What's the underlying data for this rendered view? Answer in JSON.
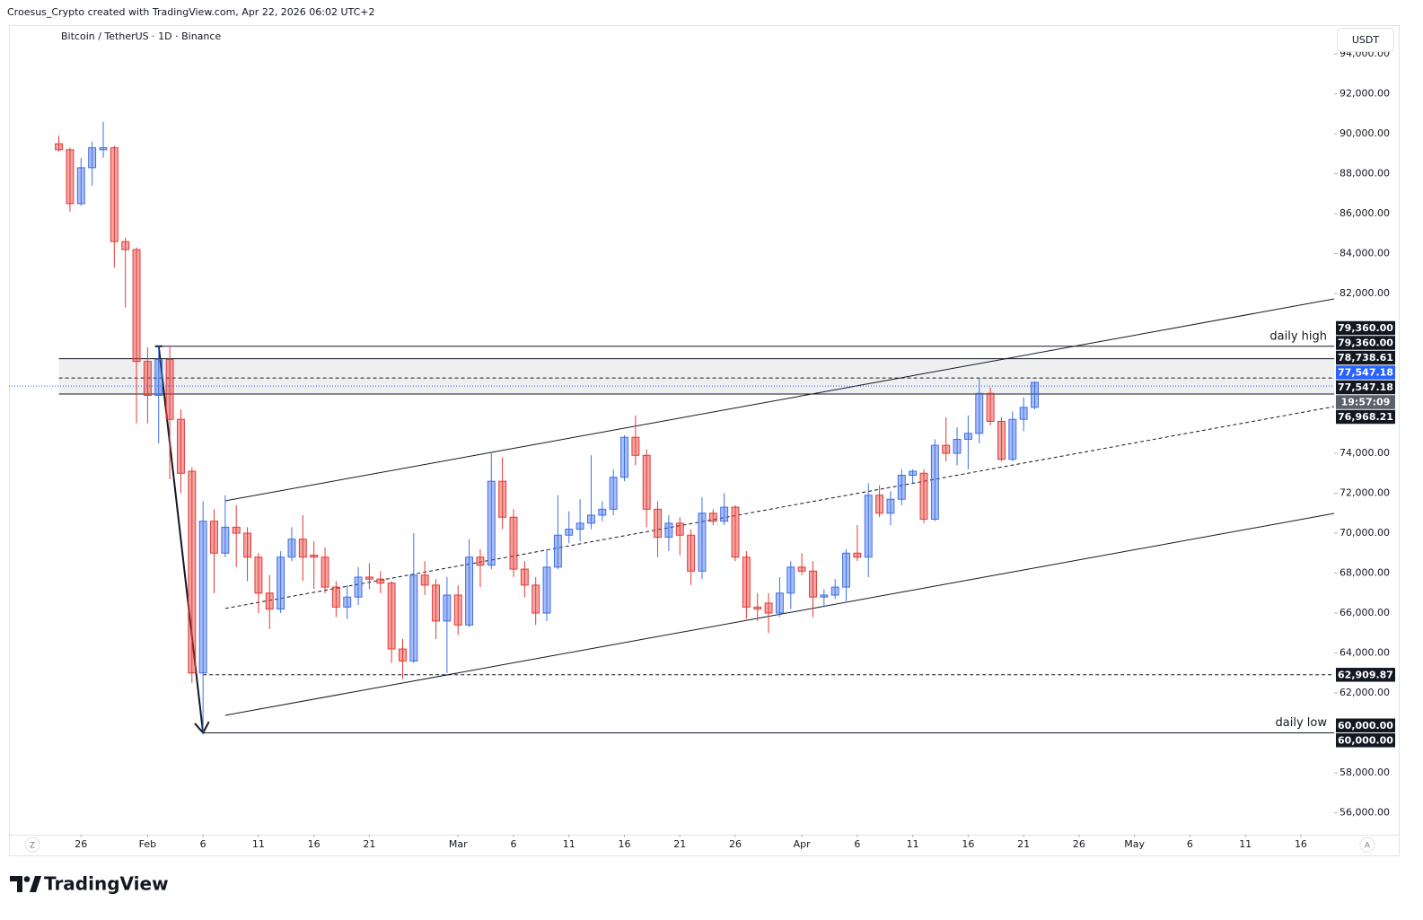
{
  "header": {
    "credit": "Croesus_Crypto created with TradingView.com, Apr 22, 2026 06:02 UTC+2",
    "currency": "USDT"
  },
  "controls": {
    "left": "Z",
    "right": "A"
  },
  "footer": {
    "logo": "TradingView"
  },
  "chart_data": {
    "type": "candlestick",
    "title": "Bitcoin / TetherUS · 1D · Binance",
    "colors": {
      "up": "#3f6ee8",
      "down": "#e53935",
      "current": "#2962ff"
    },
    "grid": false,
    "xlim": [
      "2026-01-19T12:00",
      "2026-05-19T00:00"
    ],
    "ylim": [
      54900,
      95350
    ],
    "xticks": [
      {
        "value": "2026-01-26",
        "label": "26"
      },
      {
        "value": "2026-02-01",
        "label": "Feb"
      },
      {
        "value": "2026-02-06",
        "label": "6"
      },
      {
        "value": "2026-02-11",
        "label": "11"
      },
      {
        "value": "2026-02-16",
        "label": "16"
      },
      {
        "value": "2026-02-21",
        "label": "21"
      },
      {
        "value": "2026-03-01",
        "label": "Mar"
      },
      {
        "value": "2026-03-06",
        "label": "6"
      },
      {
        "value": "2026-03-11",
        "label": "11"
      },
      {
        "value": "2026-03-16",
        "label": "16"
      },
      {
        "value": "2026-03-21",
        "label": "21"
      },
      {
        "value": "2026-03-26",
        "label": "26"
      },
      {
        "value": "2026-04-01",
        "label": "Apr"
      },
      {
        "value": "2026-04-06",
        "label": "6"
      },
      {
        "value": "2026-04-11",
        "label": "11"
      },
      {
        "value": "2026-04-16",
        "label": "16"
      },
      {
        "value": "2026-04-21",
        "label": "21"
      },
      {
        "value": "2026-04-26",
        "label": "26"
      },
      {
        "value": "2026-05-01",
        "label": "May"
      },
      {
        "value": "2026-05-06",
        "label": "6"
      },
      {
        "value": "2026-05-11",
        "label": "11"
      },
      {
        "value": "2026-05-16",
        "label": "16"
      }
    ],
    "yticks": [
      {
        "value": 94000,
        "label": "94,000.00"
      },
      {
        "value": 92000,
        "label": "92,000.00"
      },
      {
        "value": 90000,
        "label": "90,000.00"
      },
      {
        "value": 88000,
        "label": "88,000.00"
      },
      {
        "value": 86000,
        "label": "86,000.00"
      },
      {
        "value": 84000,
        "label": "84,000.00"
      },
      {
        "value": 82000,
        "label": "82,000.00"
      },
      {
        "value": 74000,
        "label": "74,000.00"
      },
      {
        "value": 72000,
        "label": "72,000.00"
      },
      {
        "value": 70000,
        "label": "70,000.00"
      },
      {
        "value": 68000,
        "label": "68,000.00"
      },
      {
        "value": 66000,
        "label": "66,000.00"
      },
      {
        "value": 64000,
        "label": "64,000.00"
      },
      {
        "value": 62000,
        "label": "62,000.00"
      },
      {
        "value": 58000,
        "label": "58,000.00"
      },
      {
        "value": 56000,
        "label": "56,000.00"
      }
    ],
    "x": [
      "2026-01-24",
      "2026-01-25",
      "2026-01-26",
      "2026-01-27",
      "2026-01-28",
      "2026-01-29",
      "2026-01-30",
      "2026-01-31",
      "2026-02-01",
      "2026-02-02",
      "2026-02-03",
      "2026-02-04",
      "2026-02-05",
      "2026-02-06",
      "2026-02-07",
      "2026-02-08",
      "2026-02-09",
      "2026-02-10",
      "2026-02-11",
      "2026-02-12",
      "2026-02-13",
      "2026-02-14",
      "2026-02-15",
      "2026-02-16",
      "2026-02-17",
      "2026-02-18",
      "2026-02-19",
      "2026-02-20",
      "2026-02-21",
      "2026-02-22",
      "2026-02-23",
      "2026-02-24",
      "2026-02-25",
      "2026-02-26",
      "2026-02-27",
      "2026-02-28",
      "2026-03-01",
      "2026-03-02",
      "2026-03-03",
      "2026-03-04",
      "2026-03-05",
      "2026-03-06",
      "2026-03-07",
      "2026-03-08",
      "2026-03-09",
      "2026-03-10",
      "2026-03-11",
      "2026-03-12",
      "2026-03-13",
      "2026-03-14",
      "2026-03-15",
      "2026-03-16",
      "2026-03-17",
      "2026-03-18",
      "2026-03-19",
      "2026-03-20",
      "2026-03-21",
      "2026-03-22",
      "2026-03-23",
      "2026-03-24",
      "2026-03-25",
      "2026-03-26",
      "2026-03-27",
      "2026-03-28",
      "2026-03-29",
      "2026-03-30",
      "2026-03-31",
      "2026-04-01",
      "2026-04-02",
      "2026-04-03",
      "2026-04-04",
      "2026-04-05",
      "2026-04-06",
      "2026-04-07",
      "2026-04-08",
      "2026-04-09",
      "2026-04-10",
      "2026-04-11",
      "2026-04-12",
      "2026-04-13",
      "2026-04-14",
      "2026-04-15",
      "2026-04-16",
      "2026-04-17",
      "2026-04-18",
      "2026-04-19",
      "2026-04-20",
      "2026-04-21",
      "2026-04-22"
    ],
    "open": [
      89500,
      89200,
      86500,
      88300,
      89200,
      89300,
      84600,
      84200,
      78600,
      76900,
      78700,
      75700,
      73100,
      63000,
      70600,
      69000,
      70300,
      70000,
      68800,
      67000,
      66200,
      68800,
      69700,
      68900,
      68800,
      67300,
      66300,
      66800,
      67800,
      67700,
      67500,
      64200,
      63600,
      67900,
      67400,
      65600,
      66900,
      65400,
      68800,
      68400,
      72600,
      70800,
      68200,
      67400,
      66000,
      68300,
      69900,
      70200,
      70500,
      70900,
      71200,
      72800,
      74800,
      73900,
      71200,
      69800,
      70500,
      69900,
      68100,
      71000,
      70600,
      71300,
      68800,
      66300,
      66500,
      66000,
      67000,
      68300,
      68100,
      66800,
      66900,
      67300,
      69000,
      68800,
      71900,
      71000,
      71700,
      72900,
      73000,
      70700,
      74400,
      74000,
      74700,
      75000,
      77000,
      75600,
      73700,
      75700,
      76300
    ],
    "high": [
      89900,
      89300,
      88800,
      89600,
      90600,
      89400,
      84800,
      84300,
      79300,
      79400,
      79400,
      76200,
      73300,
      71600,
      71200,
      71900,
      71400,
      70300,
      69000,
      67900,
      69100,
      70300,
      70900,
      69600,
      69300,
      67600,
      67400,
      68300,
      68500,
      68100,
      67600,
      64700,
      70000,
      68600,
      67700,
      67800,
      67400,
      69700,
      69200,
      74000,
      73800,
      71200,
      68600,
      67800,
      69200,
      71900,
      71100,
      71700,
      73900,
      71600,
      73200,
      74900,
      75900,
      74200,
      71600,
      70900,
      70800,
      70200,
      71800,
      71200,
      72000,
      71400,
      69100,
      67000,
      67000,
      67800,
      68600,
      69000,
      68600,
      67200,
      67700,
      69200,
      70400,
      72500,
      72400,
      72100,
      73200,
      73200,
      73200,
      74700,
      75800,
      75300,
      75900,
      77800,
      77300,
      75800,
      76100,
      76800,
      77600
    ],
    "low": [
      89100,
      86100,
      86400,
      87400,
      88800,
      83300,
      81300,
      75500,
      75500,
      74500,
      72700,
      72000,
      62500,
      60000,
      67000,
      68800,
      68300,
      67600,
      66000,
      65200,
      66000,
      68600,
      67600,
      67200,
      67000,
      65800,
      65700,
      66400,
      67200,
      67000,
      63500,
      62700,
      63500,
      66900,
      64700,
      63000,
      64900,
      65300,
      67300,
      68200,
      70200,
      67800,
      66800,
      65400,
      65600,
      68200,
      69500,
      69600,
      70200,
      70600,
      70900,
      72600,
      73400,
      70300,
      68800,
      69100,
      68900,
      67400,
      67700,
      70400,
      70400,
      68600,
      65700,
      65600,
      65000,
      65800,
      66200,
      67900,
      65800,
      66300,
      66700,
      66600,
      68600,
      67800,
      70800,
      70400,
      71400,
      72500,
      70500,
      70600,
      73600,
      73400,
      73200,
      74500,
      75400,
      73600,
      73600,
      75100,
      76200
    ],
    "close": [
      89200,
      86500,
      88300,
      89300,
      89300,
      84600,
      84200,
      78600,
      76900,
      78700,
      75700,
      73000,
      63000,
      70600,
      69000,
      70300,
      70000,
      68800,
      67000,
      66200,
      68800,
      69700,
      68800,
      68800,
      67300,
      66300,
      66800,
      67800,
      67700,
      67500,
      64200,
      63600,
      67900,
      67400,
      65600,
      66900,
      65400,
      68800,
      68400,
      72600,
      70800,
      68200,
      67400,
      66000,
      68300,
      69900,
      70200,
      70500,
      70900,
      71200,
      72800,
      74800,
      73900,
      71200,
      69800,
      70500,
      69900,
      68100,
      71000,
      70600,
      71300,
      68800,
      66300,
      66200,
      66000,
      67000,
      68300,
      68100,
      66800,
      66900,
      67300,
      69000,
      68800,
      71900,
      71000,
      71700,
      72900,
      73100,
      70700,
      74400,
      74000,
      74700,
      75000,
      77000,
      75600,
      73700,
      75700,
      76300,
      77547.18
    ],
    "zone": {
      "from": "2026-01-24",
      "top": 78738.61,
      "bottom": 76968.21,
      "mid": 77547.18
    },
    "levels": [
      {
        "from": "2026-02-02",
        "value": 79360,
        "label": "daily high",
        "style": "solid"
      },
      {
        "from": "2026-02-06",
        "value": 62909.87,
        "style": "dashed"
      },
      {
        "from": "2026-02-06",
        "value": 60000,
        "label": "daily low",
        "style": "solid"
      }
    ],
    "trendlines": [
      {
        "x": [
          "2026-02-08",
          "2026-05-19"
        ],
        "y": [
          71620,
          81730
        ],
        "style": "solid"
      },
      {
        "x": [
          "2026-02-08",
          "2026-05-19"
        ],
        "y": [
          66230,
          76340
        ],
        "style": "dashed"
      },
      {
        "x": [
          "2026-02-08",
          "2026-05-19"
        ],
        "y": [
          60880,
          70990
        ],
        "style": "solid"
      }
    ],
    "arrow": {
      "x": [
        "2026-02-02",
        "2026-02-06"
      ],
      "y": [
        79360,
        60000
      ]
    },
    "price_labels": [
      {
        "value": 79360,
        "label": "79,360.00"
      },
      {
        "value": 79360,
        "label": "79,360.00"
      },
      {
        "value": 78738.61,
        "label": "78,738.61"
      },
      {
        "value": 77547.18,
        "label": "77,547.18",
        "current": true
      },
      {
        "value": 77547.18,
        "label": "77,547.18"
      },
      {
        "label": "19:57:09"
      },
      {
        "value": 76968.21,
        "label": "76,968.21"
      },
      {
        "value": 62909.87,
        "label": "62,909.87"
      },
      {
        "value": 60000,
        "label": "60,000.00"
      },
      {
        "value": 60000,
        "label": "60,000.00"
      }
    ]
  }
}
